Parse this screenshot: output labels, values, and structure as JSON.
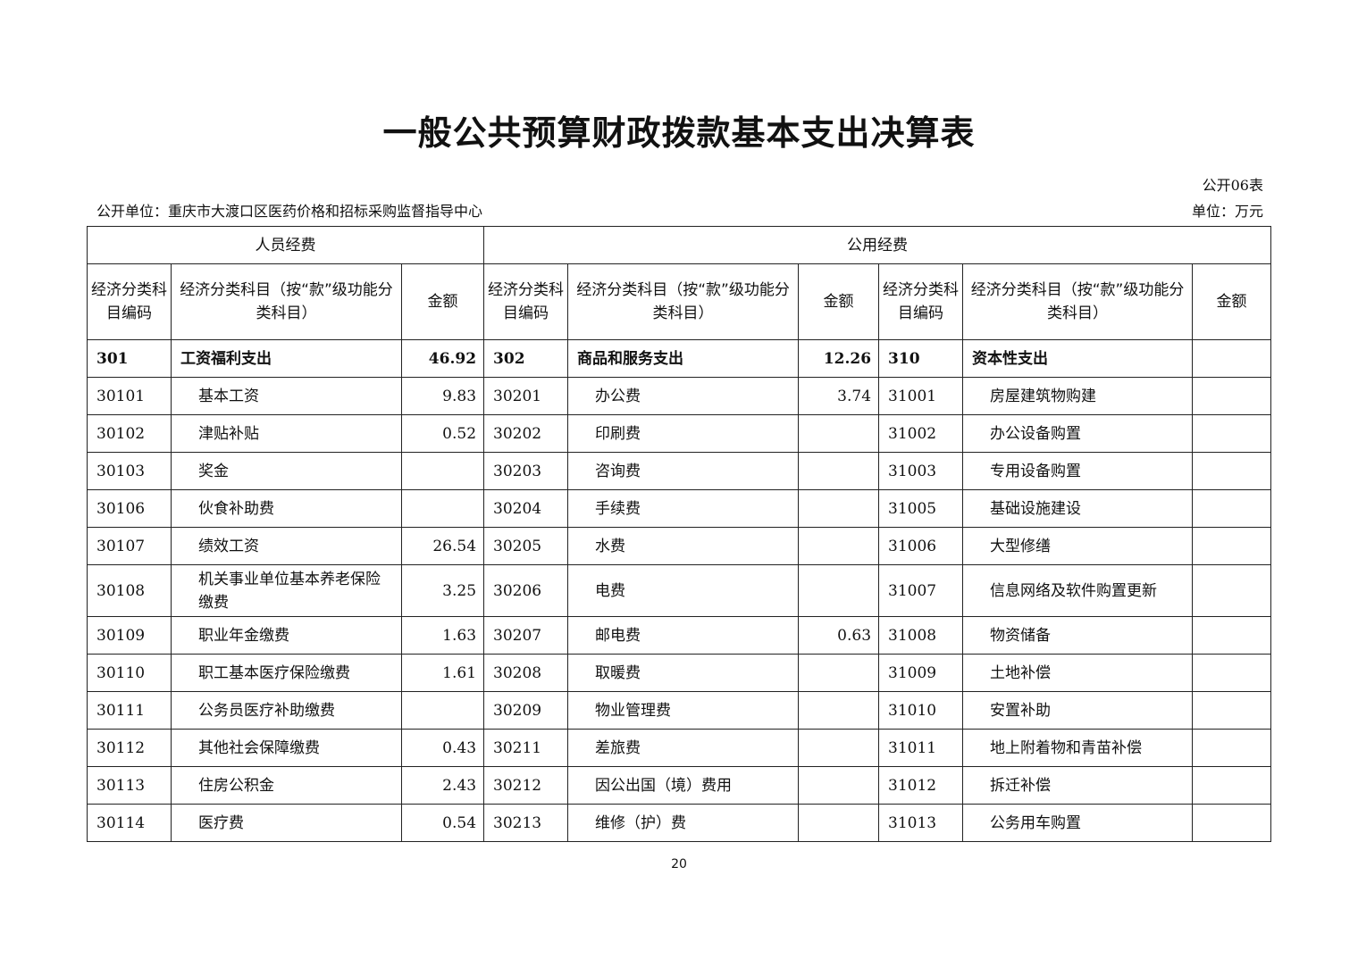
{
  "title": "一般公共预算财政拨款基本支出决算表",
  "table_no": "公开06表",
  "unit_org": "公开单位：重庆市大渡口区医药价格和招标采购监督指导中心",
  "unit_money": "单位：万元",
  "groups": [
    "人员经费",
    "公用经费"
  ],
  "col_headers": {
    "code": "经济分类科目编码",
    "name": "经济分类科目（按“款”级功能分类科目）",
    "amount": "金额"
  },
  "rows": [
    [
      "301",
      "工资福利支出",
      "46.92",
      "302",
      "商品和服务支出",
      "12.26",
      "310",
      "资本性支出",
      ""
    ],
    [
      "30101",
      "基本工资",
      "9.83",
      "30201",
      "办公费",
      "3.74",
      "31001",
      "房屋建筑物购建",
      ""
    ],
    [
      "30102",
      "津贴补贴",
      "0.52",
      "30202",
      "印刷费",
      "",
      "31002",
      "办公设备购置",
      ""
    ],
    [
      "30103",
      "奖金",
      "",
      "30203",
      "咨询费",
      "",
      "31003",
      "专用设备购置",
      ""
    ],
    [
      "30106",
      "伙食补助费",
      "",
      "30204",
      "手续费",
      "",
      "31005",
      "基础设施建设",
      ""
    ],
    [
      "30107",
      "绩效工资",
      "26.54",
      "30205",
      "水费",
      "",
      "31006",
      "大型修缮",
      ""
    ],
    [
      "30108",
      "机关事业单位基本养老保险缴费",
      "3.25",
      "30206",
      "电费",
      "",
      "31007",
      "信息网络及软件购置更新",
      ""
    ],
    [
      "30109",
      "职业年金缴费",
      "1.63",
      "30207",
      "邮电费",
      "0.63",
      "31008",
      "物资储备",
      ""
    ],
    [
      "30110",
      "职工基本医疗保险缴费",
      "1.61",
      "30208",
      "取暖费",
      "",
      "31009",
      "土地补偿",
      ""
    ],
    [
      "30111",
      "公务员医疗补助缴费",
      "",
      "30209",
      "物业管理费",
      "",
      "31010",
      "安置补助",
      ""
    ],
    [
      "30112",
      "其他社会保障缴费",
      "0.43",
      "30211",
      "差旅费",
      "",
      "31011",
      "地上附着物和青苗补偿",
      ""
    ],
    [
      "30113",
      "住房公积金",
      "2.43",
      "30212",
      "因公出国（境）费用",
      "",
      "31012",
      "拆迁补偿",
      ""
    ],
    [
      "30114",
      "医疗费",
      "0.54",
      "30213",
      "维修（护）费",
      "",
      "31013",
      "公务用车购置",
      ""
    ]
  ],
  "page_number": "20"
}
